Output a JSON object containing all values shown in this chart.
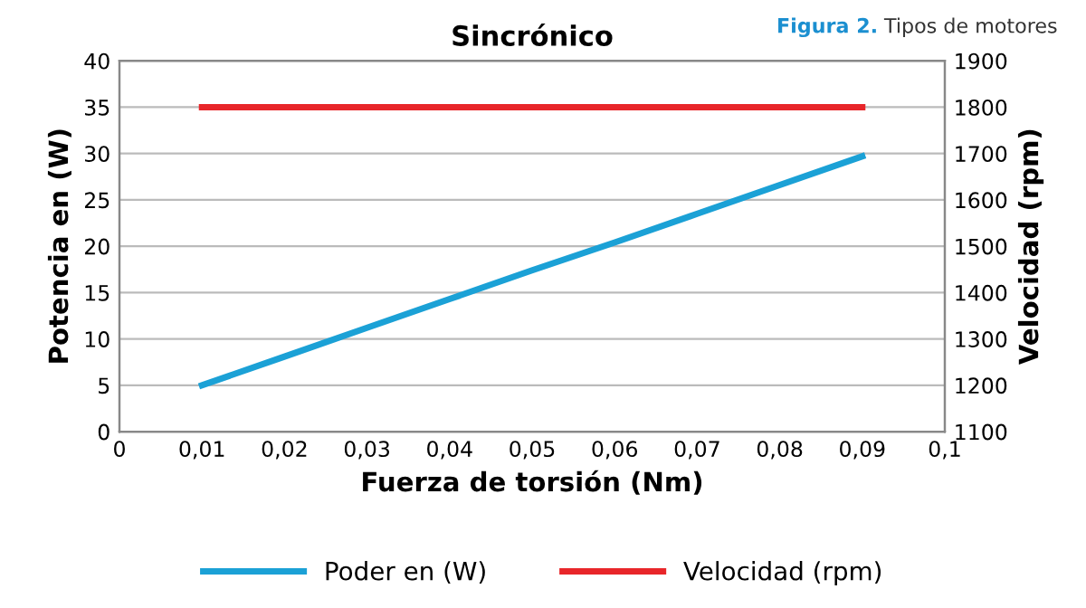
{
  "chart_data": {
    "type": "line",
    "title": "Sincrónico",
    "xlabel": "Fuerza de torsión (Nm)",
    "ylabel": "Potencia en (W)",
    "y2label": "Velocidad (rpm)",
    "annotations": [
      "Figura 2.",
      "Tipos de motores"
    ],
    "series": [
      {
        "name": "Poder en (W)",
        "color": "#1ba1d6",
        "x": [
          0.01,
          0.02,
          0.03,
          0.04,
          0.05,
          0.06,
          0.07,
          0.08,
          0.09
        ],
        "values": [
          5,
          8.1,
          11.2,
          14.3,
          17.4,
          20.4,
          23.5,
          26.6,
          29.7
        ]
      },
      {
        "name": "Velocidad (rpm)",
        "color": "#e8262a",
        "axis": "y2",
        "x": [
          0.01,
          0.09
        ],
        "values": [
          1800,
          1800
        ]
      }
    ],
    "xlim": [
      0,
      0.1
    ],
    "xticks": [
      0,
      {
        "value": 0.01,
        "label": "0,01"
      },
      {
        "value": 0.02,
        "label": "0,02"
      },
      {
        "value": 0.03,
        "label": "0,03"
      },
      {
        "value": 0.04,
        "label": "0,04"
      },
      {
        "value": 0.05,
        "label": "0,05"
      },
      {
        "value": 0.06,
        "label": "0,06"
      },
      {
        "value": 0.07,
        "label": "0,07"
      },
      {
        "value": 0.08,
        "label": "0,08"
      },
      {
        "value": 0.09,
        "label": "0,09"
      },
      {
        "value": 0.1,
        "label": "0,1"
      }
    ],
    "ylim": [
      0,
      40
    ],
    "yticks": [
      0,
      5,
      10,
      15,
      20,
      25,
      30,
      35,
      40
    ],
    "y2lim": [
      1100,
      1900
    ],
    "y2ticks": [
      1100,
      1200,
      1300,
      1400,
      1500,
      1600,
      1700,
      1800,
      1900
    ],
    "grid": "y",
    "legend": "bottom",
    "marker": "none",
    "line_style": "solid"
  }
}
